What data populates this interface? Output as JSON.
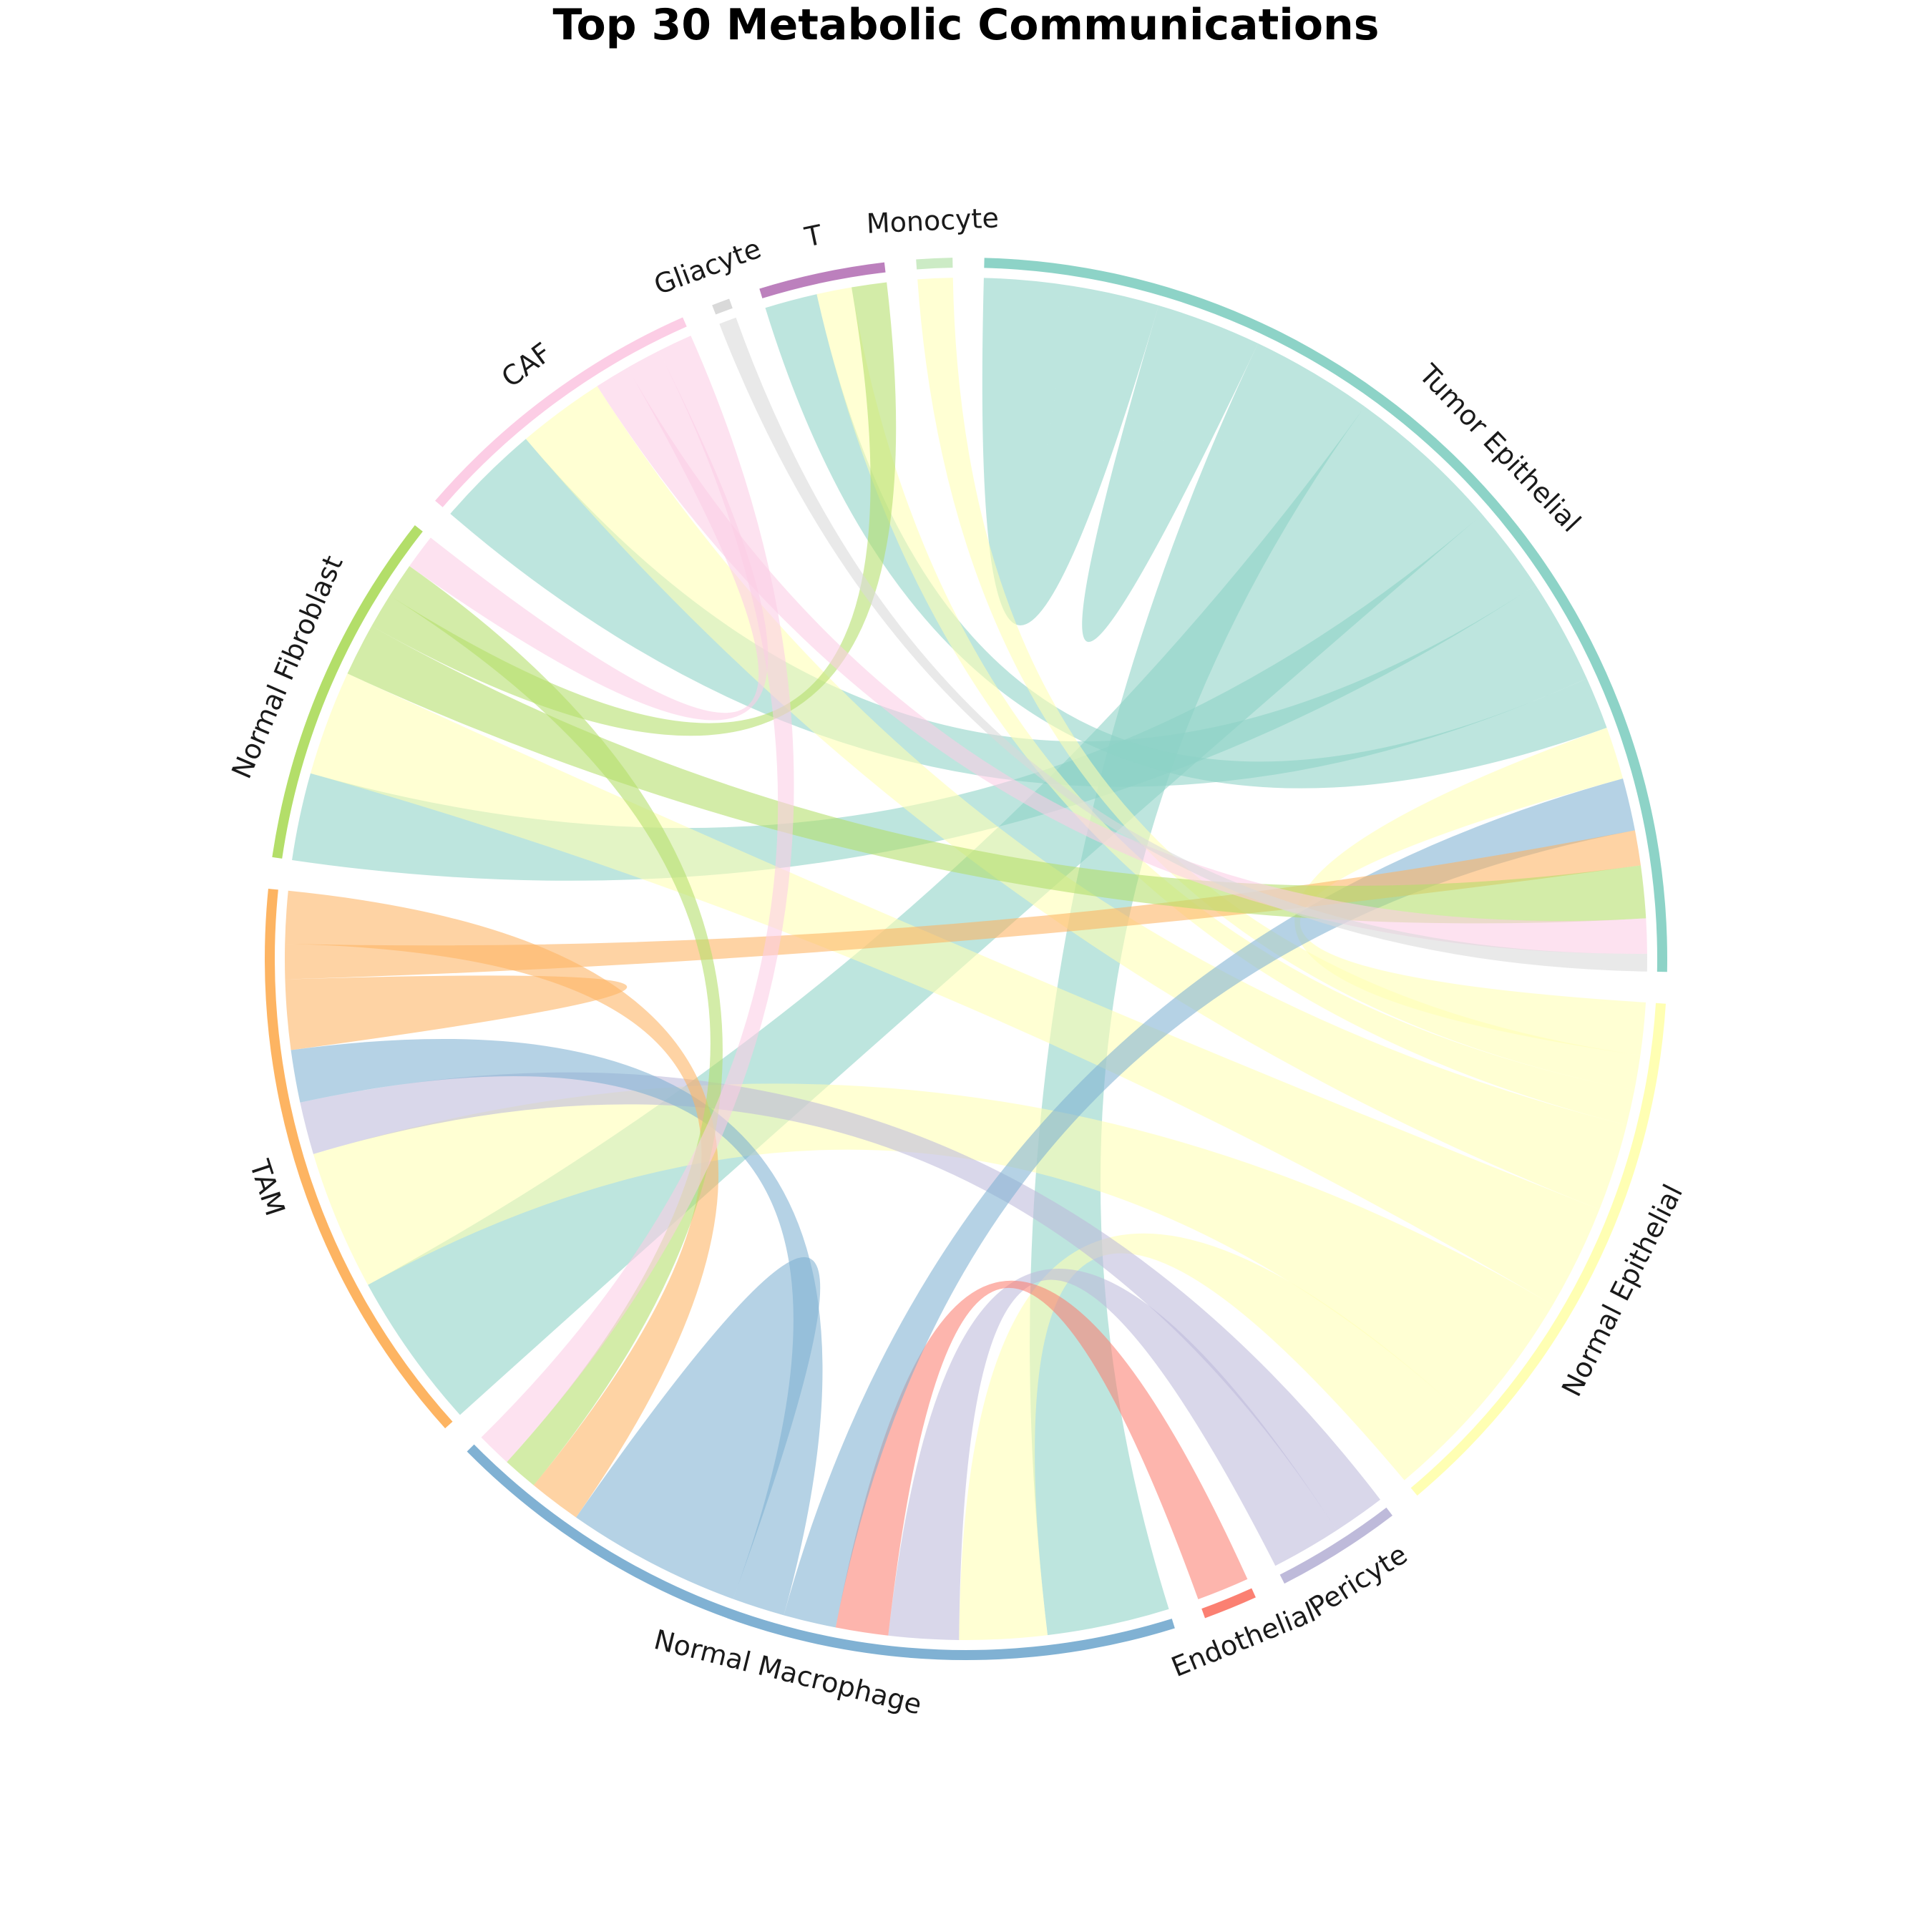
{
  "chart_data": {
    "type": "chord",
    "title": "Top 30 Metabolic Communications",
    "segments": [
      {
        "name": "Tumor Epithelial",
        "color": "#8dd3c7"
      },
      {
        "name": "Normal Epithelial",
        "color": "#ffffb3"
      },
      {
        "name": "Pericyte",
        "color": "#bebada"
      },
      {
        "name": "Endothelial",
        "color": "#fb8072"
      },
      {
        "name": "Normal Macrophage",
        "color": "#80b1d3"
      },
      {
        "name": "TAM",
        "color": "#fdb462"
      },
      {
        "name": "Normal Fibroblast",
        "color": "#b3de69"
      },
      {
        "name": "CAF",
        "color": "#fccde5"
      },
      {
        "name": "Gliacyte",
        "color": "#d9d9d9"
      },
      {
        "name": "T",
        "color": "#bc80bd"
      },
      {
        "name": "Monocyte",
        "color": "#ccebc5"
      }
    ],
    "links": [
      {
        "source": "Tumor Epithelial",
        "target": "Tumor Epithelial",
        "value": 5
      },
      {
        "source": "Tumor Epithelial",
        "target": "Tumor Epithelial",
        "value": 3
      },
      {
        "source": "Tumor Epithelial",
        "target": "Normal Macrophage",
        "value": 7
      },
      {
        "source": "Tumor Epithelial",
        "target": "TAM",
        "value": 9
      },
      {
        "source": "Tumor Epithelial",
        "target": "Normal Fibroblast",
        "value": 5
      },
      {
        "source": "Tumor Epithelial",
        "target": "CAF",
        "value": 6
      },
      {
        "source": "Tumor Epithelial",
        "target": "T",
        "value": 3
      },
      {
        "source": "Normal Epithelial",
        "target": "Tumor Epithelial",
        "value": 3
      },
      {
        "source": "Normal Epithelial",
        "target": "Monocyte",
        "value": 2
      },
      {
        "source": "Normal Epithelial",
        "target": "T",
        "value": 2
      },
      {
        "source": "Normal Epithelial",
        "target": "CAF",
        "value": 5
      },
      {
        "source": "Normal Epithelial",
        "target": "Normal Fibroblast",
        "value": 6
      },
      {
        "source": "Normal Epithelial",
        "target": "TAM",
        "value": 8
      },
      {
        "source": "Normal Epithelial",
        "target": "Normal Macrophage",
        "value": 5
      },
      {
        "source": "Pericyte",
        "target": "TAM",
        "value": 3
      },
      {
        "source": "Pericyte",
        "target": "Normal Macrophage",
        "value": 4
      },
      {
        "source": "Endothelial",
        "target": "Normal Macrophage",
        "value": 3
      },
      {
        "source": "Normal Macrophage",
        "target": "Tumor Epithelial",
        "value": 3
      },
      {
        "source": "Normal Macrophage",
        "target": "TAM",
        "value": 3
      },
      {
        "source": "Normal Macrophage",
        "target": "Normal Macrophage",
        "value": 5
      },
      {
        "source": "TAM",
        "target": "TAM",
        "value": 2
      },
      {
        "source": "TAM",
        "target": "Tumor Epithelial",
        "value": 2
      },
      {
        "source": "TAM",
        "target": "Normal Macrophage",
        "value": 3
      },
      {
        "source": "Normal Fibroblast",
        "target": "Tumor Epithelial",
        "value": 3
      },
      {
        "source": "Normal Fibroblast",
        "target": "T",
        "value": 2
      },
      {
        "source": "Normal Fibroblast",
        "target": "Normal Macrophage",
        "value": 2
      },
      {
        "source": "CAF",
        "target": "Tumor Epithelial",
        "value": 2
      },
      {
        "source": "CAF",
        "target": "Normal Fibroblast",
        "value": 2
      },
      {
        "source": "CAF",
        "target": "Normal Macrophage",
        "value": 2
      },
      {
        "source": "Gliacyte",
        "target": "Tumor Epithelial",
        "value": 1
      }
    ]
  }
}
